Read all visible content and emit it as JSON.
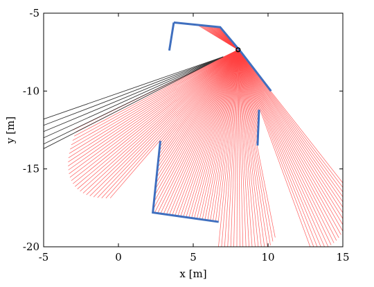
{
  "chart_data": {
    "type": "line",
    "title": "",
    "xlabel": "x [m]",
    "ylabel": "y [m]",
    "xlim": [
      -5,
      15
    ],
    "ylim": [
      -20,
      -5
    ],
    "x_ticks": [
      -5,
      0,
      5,
      10,
      15
    ],
    "y_ticks": [
      -5,
      -10,
      -15,
      -20
    ],
    "grid": false,
    "legend": "none",
    "colors": {
      "rays": "#ff4040",
      "walls": "#3f6fbf",
      "miss_rays": "#333333",
      "sensor": "#000000"
    },
    "sensor": {
      "x": 8.0,
      "y": -7.35
    },
    "walls": [
      {
        "x": [
          3.7,
          6.8,
          8.2,
          10.2
        ],
        "y": [
          -5.6,
          -5.9,
          -7.5,
          -10.0
        ]
      },
      {
        "x": [
          3.7,
          3.4
        ],
        "y": [
          -5.6,
          -7.4
        ]
      },
      {
        "x": [
          2.8,
          2.3,
          6.7
        ],
        "y": [
          -13.2,
          -17.8,
          -18.4
        ]
      },
      {
        "x": [
          9.4,
          9.3
        ],
        "y": [
          -11.2,
          -13.5
        ]
      }
    ],
    "miss_rays": [
      {
        "x": [
          7.0,
          -5.0
        ],
        "y": [
          -7.8,
          -11.8
        ]
      },
      {
        "x": [
          7.0,
          -5.0
        ],
        "y": [
          -7.8,
          -12.2
        ]
      },
      {
        "x": [
          7.0,
          -5.0
        ],
        "y": [
          -7.8,
          -12.6
        ]
      },
      {
        "x": [
          7.0,
          -5.0
        ],
        "y": [
          -7.8,
          -13.0
        ]
      },
      {
        "x": [
          7.0,
          -5.0
        ],
        "y": [
          -7.8,
          -13.4
        ]
      },
      {
        "x": [
          7.0,
          -5.0
        ],
        "y": [
          -7.8,
          -13.7
        ]
      }
    ]
  }
}
